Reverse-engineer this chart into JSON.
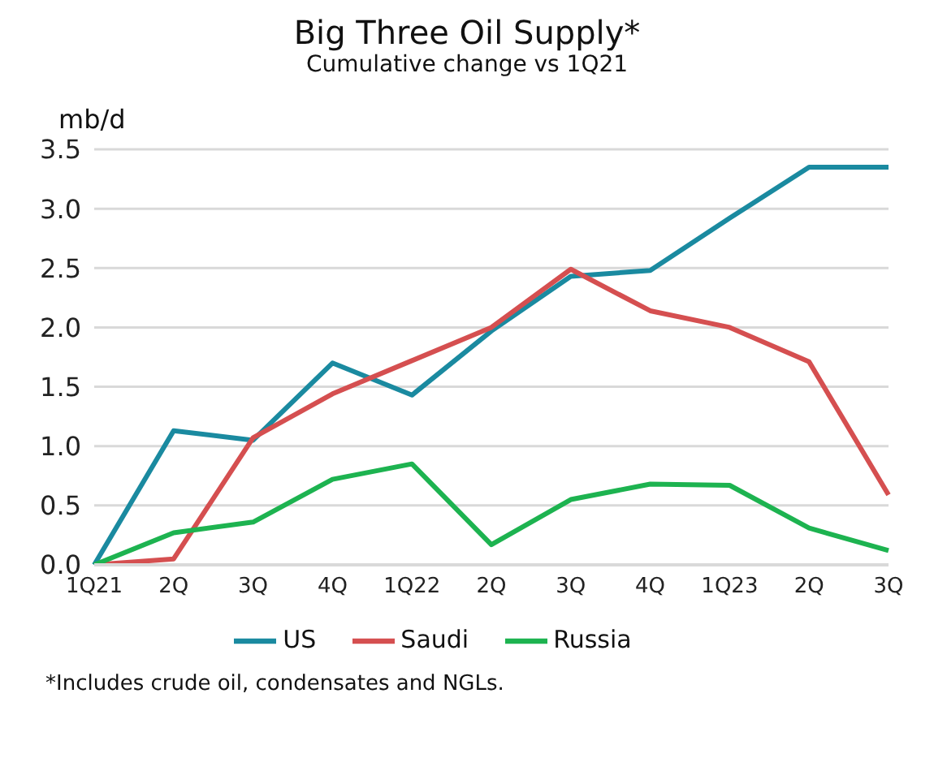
{
  "chart_data": {
    "type": "line",
    "title": "Big Three Oil Supply*",
    "subtitle": "Cumulative change vs 1Q21",
    "ylabel": "mb/d",
    "categories": [
      "1Q21",
      "2Q",
      "3Q",
      "4Q",
      "1Q22",
      "2Q",
      "3Q",
      "4Q",
      "1Q23",
      "2Q",
      "3Q"
    ],
    "series": [
      {
        "name": "US",
        "color": "#1a8aa0",
        "values": [
          0,
          1.13,
          1.05,
          1.7,
          1.43,
          1.97,
          2.43,
          2.48,
          2.92,
          3.35,
          3.35
        ]
      },
      {
        "name": "Saudi",
        "color": "#d54f50",
        "values": [
          0,
          0.05,
          1.07,
          1.44,
          1.72,
          2.0,
          2.49,
          2.14,
          2.0,
          1.71,
          0.59
        ]
      },
      {
        "name": "Russia",
        "color": "#1db350",
        "values": [
          0,
          0.27,
          0.36,
          0.72,
          0.85,
          0.17,
          0.55,
          0.68,
          0.67,
          0.31,
          0.12
        ]
      }
    ],
    "ylim": [
      0,
      3.5
    ],
    "yticks": [
      {
        "value": 0,
        "label": "0.0"
      },
      0.5,
      {
        "value": 1,
        "label": "1.0"
      },
      1.5,
      {
        "value": 2,
        "label": "2.0"
      },
      2.5,
      {
        "value": 3,
        "label": "3.0"
      },
      3.5
    ],
    "grid": "y",
    "legend": "bottom",
    "marker": "none",
    "line_style": "solid",
    "annotations": [
      "*Includes crude oil, condensates and NGLs."
    ]
  }
}
